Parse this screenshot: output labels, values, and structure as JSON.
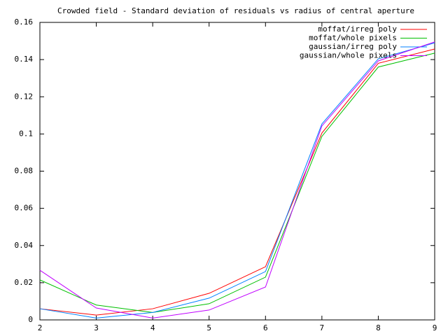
{
  "chart_data": {
    "type": "line",
    "title": "Crowded field - Standard deviation of residuals vs radius of central aperture",
    "x": [
      2,
      3,
      4,
      5,
      6,
      7,
      8,
      9
    ],
    "xlim": [
      2,
      9
    ],
    "xticks": [
      2,
      3,
      4,
      5,
      6,
      7,
      8,
      9
    ],
    "ylim": [
      0,
      0.16
    ],
    "yticks": [
      0,
      0.02,
      0.04,
      0.06,
      0.08,
      0.1,
      0.12,
      0.14,
      0.16
    ],
    "legend": "upper-right",
    "series": [
      {
        "name": "moffat/irreg poly",
        "color": "#ff0000",
        "values": [
          0.006,
          0.0026,
          0.006,
          0.0143,
          0.0286,
          0.1005,
          0.138,
          0.1457
        ]
      },
      {
        "name": "moffat/whole pixels",
        "color": "#00c000",
        "values": [
          0.0215,
          0.008,
          0.004,
          0.0087,
          0.023,
          0.0987,
          0.136,
          0.1435
        ]
      },
      {
        "name": "gaussian/irreg poly",
        "color": "#0080ff",
        "values": [
          0.006,
          0.001,
          0.004,
          0.0117,
          0.026,
          0.1054,
          0.1404,
          0.149
        ]
      },
      {
        "name": "gaussian/whole pixels",
        "color": "#c000ff",
        "values": [
          0.0267,
          0.0064,
          0.001,
          0.0053,
          0.0177,
          0.1043,
          0.1393,
          0.1495
        ]
      }
    ]
  }
}
